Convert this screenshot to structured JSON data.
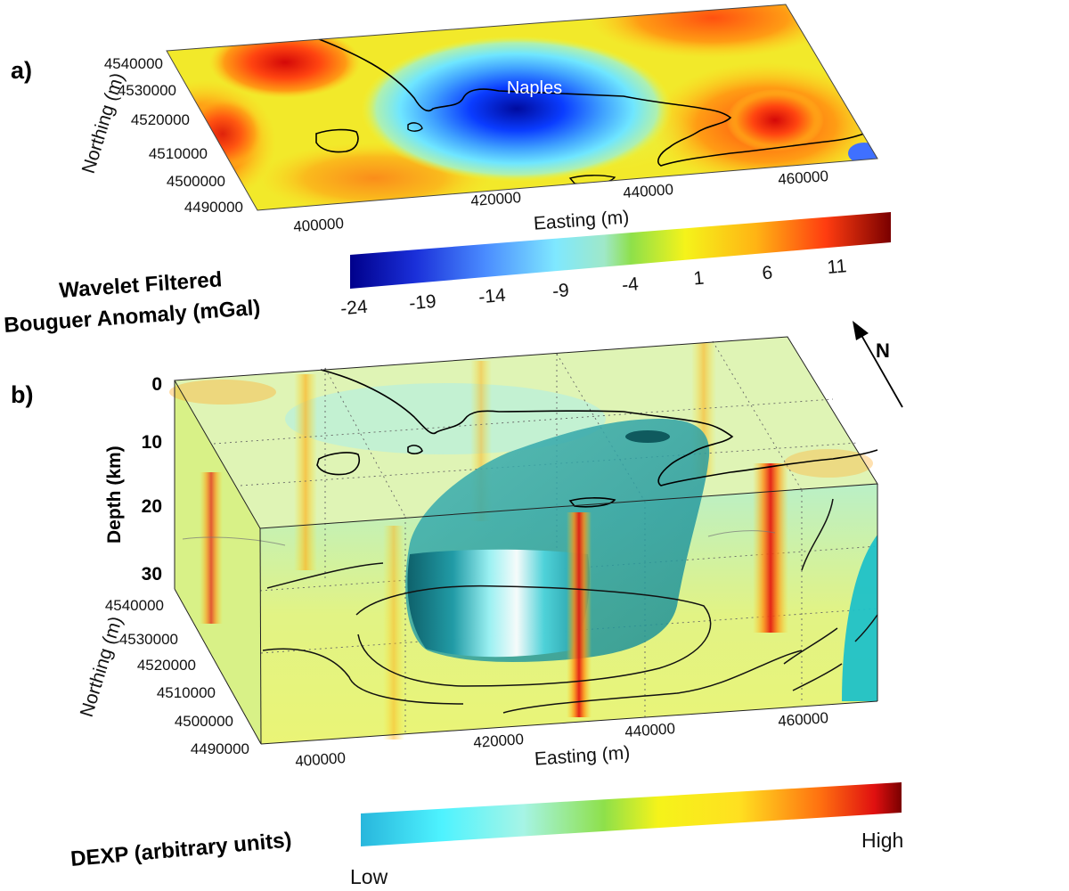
{
  "panel_a": {
    "label": "a)",
    "city_label": "Naples",
    "northing_ticks": [
      "4540000",
      "4530000",
      "4520000",
      "4510000",
      "4500000",
      "4490000"
    ],
    "easting_ticks": [
      "400000",
      "420000",
      "440000",
      "460000"
    ],
    "northing_label": "Northing (m)",
    "easting_label": "Easting (m)"
  },
  "colorbar_a": {
    "title_line1": "Wavelet Filtered",
    "title_line2": "Bouguer Anomaly (mGal)",
    "ticks": [
      "-24",
      "-19",
      "-14",
      "-9",
      "-4",
      "1",
      "6",
      "11"
    ]
  },
  "north_arrow": {
    "label": "N"
  },
  "panel_b": {
    "label": "b)",
    "depth_label": "Depth (km)",
    "depth_ticks": [
      "0",
      "10",
      "20",
      "30"
    ],
    "northing_ticks": [
      "4540000",
      "4530000",
      "4520000",
      "4510000",
      "4500000",
      "4490000"
    ],
    "easting_ticks": [
      "400000",
      "420000",
      "440000",
      "460000"
    ],
    "northing_label": "Northing (m)",
    "easting_label": "Easting (m)"
  },
  "colorbar_b": {
    "title": "DEXP (arbitrary units)",
    "low_label": "Low",
    "high_label": "High"
  },
  "colors": {
    "jet_dark_blue": "#00008b",
    "jet_blue": "#0a3cff",
    "jet_cyan": "#5fe6ff",
    "jet_green": "#8fe04a",
    "jet_yellow": "#ffef1a",
    "jet_orange": "#ff9a10",
    "jet_red": "#e8110d",
    "jet_dark_red": "#7a0000",
    "body_teal": "#2aa0a8"
  }
}
